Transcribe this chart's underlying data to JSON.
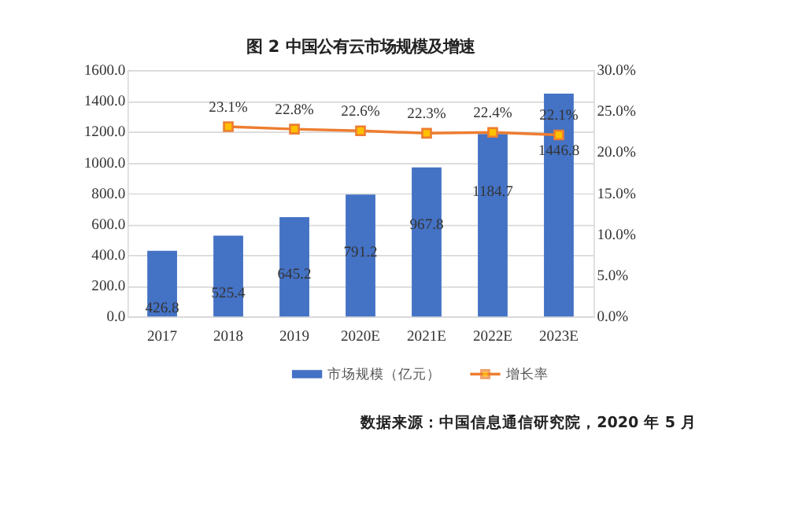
{
  "chart_data": {
    "type": "bar",
    "title": "图 2  中国公有云市场规模及增速",
    "categories": [
      "2017",
      "2018",
      "2019",
      "2020E",
      "2021E",
      "2022E",
      "2023E"
    ],
    "series": [
      {
        "name": "市场规模（亿元）",
        "type": "bar",
        "color": "#4472c4",
        "values": [
          426.8,
          525.4,
          645.2,
          791.2,
          967.8,
          1184.7,
          1446.8
        ],
        "value_labels": [
          "426.8",
          "525.4",
          "645.2",
          "791.2",
          "967.8",
          "1184.7",
          "1446.8"
        ]
      },
      {
        "name": "增长率",
        "type": "line",
        "axis": "y2",
        "color": "#ed7d31",
        "marker": "square",
        "line_style": "solid",
        "values": [
          null,
          23.1,
          22.8,
          22.6,
          22.3,
          22.4,
          22.1
        ],
        "value_labels": [
          null,
          "23.1%",
          "22.8%",
          "22.6%",
          "22.3%",
          "22.4%",
          "22.1%"
        ]
      }
    ],
    "ylim": [
      0,
      1600
    ],
    "yticks": [
      {
        "value": 0,
        "label": "0.0"
      },
      {
        "value": 200,
        "label": "200.0"
      },
      {
        "value": 400,
        "label": "400.0"
      },
      {
        "value": 600,
        "label": "600.0"
      },
      {
        "value": 800,
        "label": "800.0"
      },
      {
        "value": 1000,
        "label": "1000.0"
      },
      {
        "value": 1200,
        "label": "1200.0"
      },
      {
        "value": 1400,
        "label": "1400.0"
      },
      {
        "value": 1600,
        "label": "1600.0"
      }
    ],
    "y2lim": [
      0,
      30
    ],
    "y2ticks": [
      {
        "value": 0,
        "label": "0.0%"
      },
      {
        "value": 5,
        "label": "5.0%"
      },
      {
        "value": 10,
        "label": "10.0%"
      },
      {
        "value": 15,
        "label": "15.0%"
      },
      {
        "value": 20,
        "label": "20.0%"
      },
      {
        "value": 25,
        "label": "25.0%"
      },
      {
        "value": 30,
        "label": "30.0%"
      }
    ],
    "grid": "y",
    "legend": "bottom",
    "annotations": [
      "数据来源：中国信息通信研究院，2020 年 5 月"
    ]
  }
}
